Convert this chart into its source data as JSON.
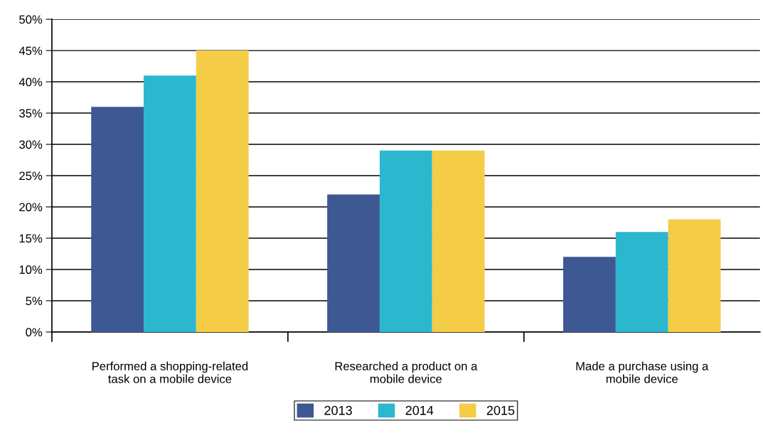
{
  "chart_data": {
    "type": "bar",
    "categories": [
      "Performed a shopping-related\ntask on a mobile device",
      "Researched a product on a\nmobile device",
      "Made a purchase using a\nmobile device"
    ],
    "series": [
      {
        "name": "2013",
        "color": "#3d5893",
        "values": [
          36,
          22,
          12
        ]
      },
      {
        "name": "2014",
        "color": "#2bb8cf",
        "values": [
          41,
          29,
          16
        ]
      },
      {
        "name": "2015",
        "color": "#f5cc45",
        "values": [
          45,
          29,
          18
        ]
      }
    ],
    "ylim": [
      0,
      50
    ],
    "yticks": [
      {
        "value": 0,
        "label": "0%"
      },
      {
        "value": 5,
        "label": "5%"
      },
      {
        "value": 10,
        "label": "10%"
      },
      {
        "value": 15,
        "label": "15%"
      },
      {
        "value": 20,
        "label": "20%"
      },
      {
        "value": 25,
        "label": "25%"
      },
      {
        "value": 30,
        "label": "30%"
      },
      {
        "value": 35,
        "label": "35%"
      },
      {
        "value": 40,
        "label": "40%"
      },
      {
        "value": 45,
        "label": "45%"
      },
      {
        "value": 50,
        "label": "50%"
      }
    ],
    "grid": "y",
    "legend": "bottom"
  }
}
